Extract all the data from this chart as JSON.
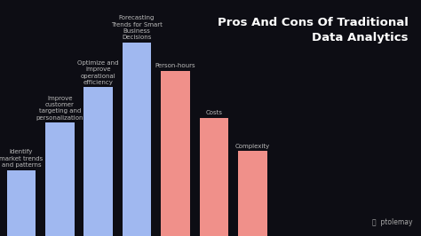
{
  "title": "Pros And Cons Of Traditional\nData Analytics",
  "background_color": "#0d0d14",
  "bars": [
    {
      "label": "Identify\nmarket trends\nand patterns",
      "value": 28,
      "color": "#a0b8f0"
    },
    {
      "label": "Improve\ncustomer\ntargeting and\npersonalization",
      "value": 48,
      "color": "#a0b8f0"
    },
    {
      "label": "Optimize and\nimprove\noperational\nefficiency",
      "value": 63,
      "color": "#a0b8f0"
    },
    {
      "label": "Forecasting\nTrends for Smart\nBusiness\nDecisions",
      "value": 82,
      "color": "#a0b8f0"
    },
    {
      "label": "Person-hours",
      "value": 70,
      "color": "#f0908a"
    },
    {
      "label": "Costs",
      "value": 50,
      "color": "#f0908a"
    },
    {
      "label": "Complexity",
      "value": 36,
      "color": "#f0908a"
    }
  ],
  "label_color": "#bbbbbb",
  "label_fontsize": 5.0,
  "title_fontsize": 9.5,
  "title_color": "#ffffff",
  "watermark": "ptolemay",
  "watermark_color": "#aaaaaa",
  "watermark_fontsize": 5.5
}
